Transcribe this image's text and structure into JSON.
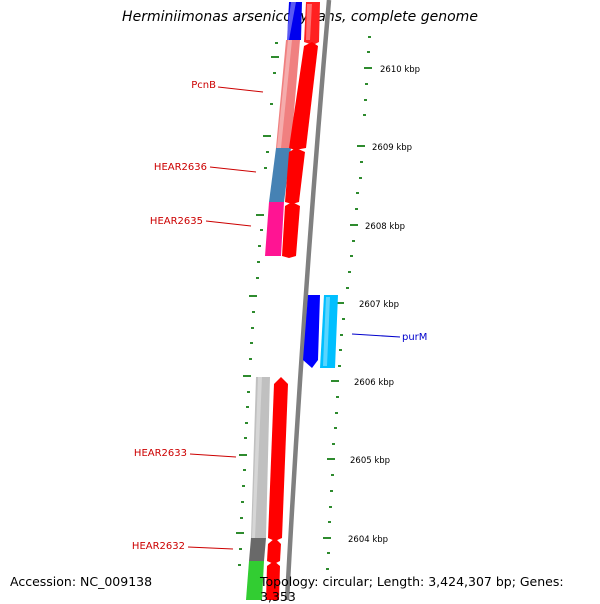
{
  "header": {
    "title": "Herminiimonas arsenicoxydans, complete genome"
  },
  "footer": {
    "accession": "Accession: NC_009138",
    "topology": "Topology: circular; Length: 3,424,307 bp; Genes: 3,353"
  },
  "map": {
    "scale_unit": "kbp",
    "ticks": [
      "2610 kbp",
      "2609 kbp",
      "2608 kbp",
      "2607 kbp",
      "2606 kbp",
      "2605 kbp",
      "2604 kbp"
    ],
    "gene_labels": [
      {
        "text": "PcnB",
        "color": "#cc0000"
      },
      {
        "text": "HEAR2636",
        "color": "#cc0000"
      },
      {
        "text": "HEAR2635",
        "color": "#cc0000"
      },
      {
        "text": "purM",
        "color": "#0000cc"
      },
      {
        "text": "HEAR2633",
        "color": "#cc0000"
      },
      {
        "text": "HEAR2632",
        "color": "#cc0000"
      }
    ],
    "colors": {
      "backbone": "#808080",
      "tick": "#2e8b2e",
      "forward_strand": "#ff0000",
      "reverse_strand": "#0000ff"
    }
  }
}
